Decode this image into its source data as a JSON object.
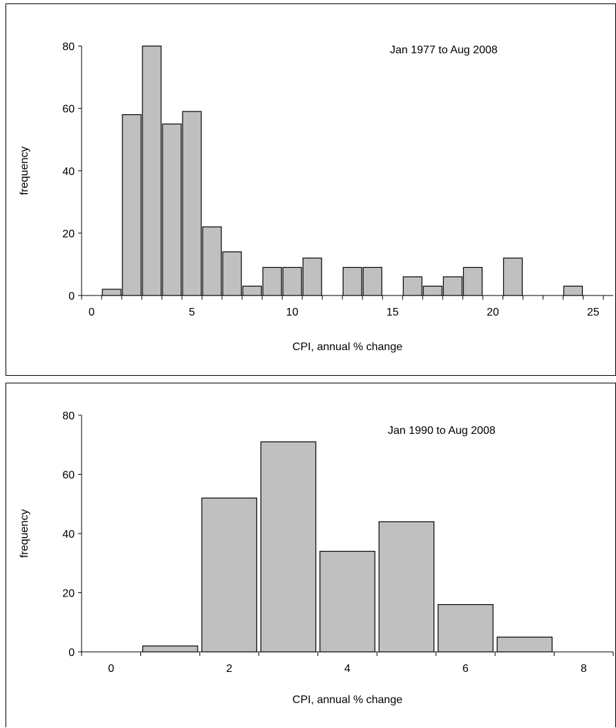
{
  "chart_data": [
    {
      "type": "bar",
      "annotation": "Jan 1977 to Aug 2008",
      "xlabel": "CPI, annual % change",
      "ylabel": "frequency",
      "xlim": [
        -0.5,
        26
      ],
      "ylim": [
        0,
        85
      ],
      "xticks": [
        0,
        5,
        10,
        15,
        20,
        25
      ],
      "yticks": [
        0,
        20,
        40,
        60,
        80
      ],
      "x": [
        1,
        2,
        3,
        4,
        5,
        6,
        7,
        8,
        9,
        10,
        11,
        12,
        13,
        14,
        15,
        16,
        17,
        18,
        19,
        20,
        21,
        22,
        23,
        24,
        25
      ],
      "values": [
        2,
        58,
        80,
        55,
        59,
        22,
        14,
        3,
        9,
        9,
        12,
        0,
        9,
        9,
        0,
        6,
        3,
        6,
        9,
        0,
        12,
        0,
        0,
        3,
        0
      ],
      "grid": false,
      "legend": "none"
    },
    {
      "type": "bar",
      "annotation": "Jan 1990 to Aug 2008",
      "xlabel": "CPI, annual % change",
      "ylabel": "frequency",
      "xlim": [
        -0.5,
        8.5
      ],
      "ylim": [
        0,
        80
      ],
      "xticks": [
        0,
        2,
        4,
        6,
        8
      ],
      "yticks": [
        0,
        20,
        40,
        60,
        80
      ],
      "x": [
        0,
        1,
        2,
        3,
        4,
        5,
        6,
        7,
        8
      ],
      "values": [
        0,
        2,
        52,
        71,
        34,
        44,
        16,
        5,
        0
      ],
      "grid": false,
      "legend": "none"
    }
  ]
}
